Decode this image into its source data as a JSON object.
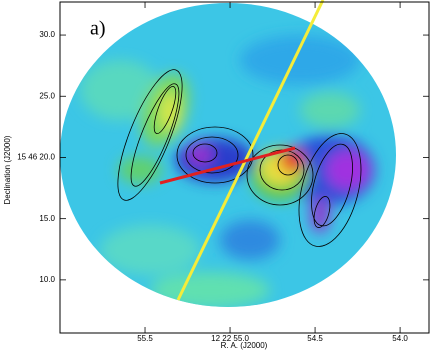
{
  "chart_data": {
    "type": "image",
    "panel_label": "a)",
    "xlabel": "R. A. (J2000)",
    "ylabel": "Declination (J2000)",
    "xlim": [
      56.0,
      53.83
    ],
    "ylim": [
      5.66,
      32.7
    ],
    "xticks": [
      55.5,
      {
        "value": 55.0,
        "label": "12 22 55.0"
      },
      54.5,
      {
        "value": 54.0,
        "label": "54.0"
      }
    ],
    "yticks": [
      {
        "value": 30.0,
        "label": "30.0"
      },
      {
        "value": 25.0,
        "label": "25.0"
      },
      {
        "value": 20.0,
        "label": "15 46 20.0"
      },
      {
        "value": 15.0,
        "label": "15.0"
      },
      {
        "value": 10.0,
        "label": "10.0"
      }
    ]
  }
}
